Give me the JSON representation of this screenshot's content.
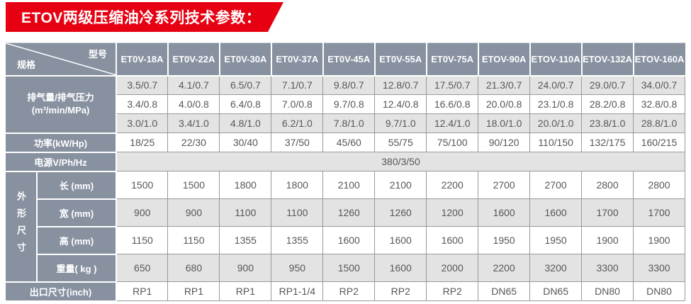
{
  "banner": {
    "title": "ETOV两级压缩油冷系列技术参数："
  },
  "colors": {
    "banner_red": "#e60012",
    "header_slate": "#8791a0",
    "stripe_gray": "#e3e3e3",
    "cell_border_gray": "#999999",
    "data_text": "#56575b"
  },
  "table": {
    "corner": {
      "model_label": "型号",
      "spec_label": "规格"
    },
    "models": [
      "ET0V-18A",
      "ET0V-22A",
      "ET0V-30A",
      "ET0V-37A",
      "ET0V-45A",
      "ET0V-55A",
      "ET0V-75A",
      "ETOV-90A",
      "ETOV-110A",
      "ETOV-132A",
      "ETOV-160A"
    ],
    "capacity": {
      "label_line1": "排气量/排气压力",
      "label_line2": "(m³/min/MPa)",
      "sub_rows": [
        [
          "3.5/0.7",
          "4.1/0.7",
          "6.5/0.7",
          "7.1/0.7",
          "9.8/0.7",
          "12.8/0.7",
          "17.5/0.7",
          "21.3/0.7",
          "24.0/0.7",
          "29.0/0.7",
          "34.0/0.7"
        ],
        [
          "3.4/0.8",
          "4.0/0.8",
          "6.4/0.8",
          "7.0/0.8",
          "9.7/0.8",
          "12.4/0.8",
          "16.6/0.8",
          "20.0/0.8",
          "23.1/0.8",
          "28.2/0.8",
          "32.8/0.8"
        ],
        [
          "3.0/1.0",
          "3.4/1.0",
          "4.8/1.0",
          "6.2/1.0",
          "7.8/1.0",
          "9.7/1.0",
          "12.4/1.0",
          "18.0/1.0",
          "20.0/1.0",
          "23.8/1.0",
          "28.8/1.0"
        ]
      ]
    },
    "power": {
      "label": "功率(kW/Hp)",
      "values": [
        "18/25",
        "22/30",
        "30/40",
        "37/50",
        "45/60",
        "55/75",
        "75/100",
        "90/120",
        "110/150",
        "132/175",
        "160/215"
      ]
    },
    "supply": {
      "label": "电源V/Ph/Hz",
      "value": "380/3/50"
    },
    "dimensions": {
      "group_label": "外形尺寸",
      "rows": [
        {
          "label": "长 (mm)",
          "values": [
            "1500",
            "1500",
            "1800",
            "1800",
            "2100",
            "2100",
            "2200",
            "2700",
            "2700",
            "2800",
            "2800"
          ]
        },
        {
          "label": "宽 (mm)",
          "values": [
            "900",
            "900",
            "1100",
            "1100",
            "1260",
            "1260",
            "1200",
            "1600",
            "1600",
            "1700",
            "1700"
          ]
        },
        {
          "label": "高 (mm)",
          "values": [
            "1150",
            "1150",
            "1355",
            "1355",
            "1600",
            "1600",
            "1600",
            "1950",
            "1950",
            "1900",
            "1900"
          ]
        },
        {
          "label": "重量( kg )",
          "values": [
            "650",
            "680",
            "900",
            "950",
            "1500",
            "1600",
            "2000",
            "2200",
            "3200",
            "3300",
            "3300"
          ]
        }
      ]
    },
    "outlet": {
      "label": "出口尺寸(inch)",
      "values": [
        "RP1",
        "RP1",
        "RP1",
        "RP1-1/4",
        "RP2",
        "RP2",
        "RP2",
        "DN65",
        "DN65",
        "DN80",
        "DN80"
      ]
    }
  }
}
